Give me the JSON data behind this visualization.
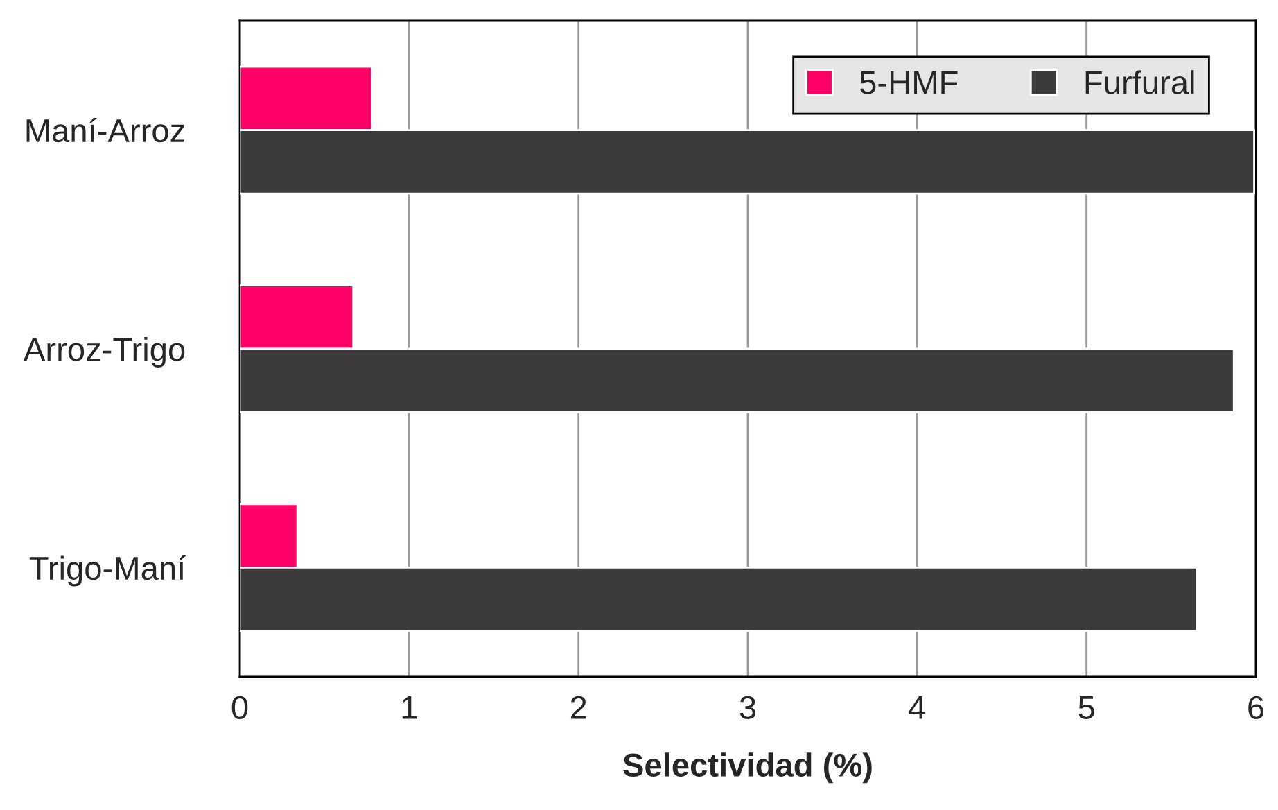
{
  "chart_data": {
    "type": "bar",
    "orientation": "horizontal",
    "xlabel": "Selectividad (%)",
    "categories": [
      "Maní-Arroz",
      "Arroz-Trigo",
      "Trigo-Maní"
    ],
    "series": [
      {
        "name": "5-HMF",
        "color": "#ff0066",
        "values": [
          0.78,
          0.67,
          0.34
        ]
      },
      {
        "name": "Furfural",
        "color": "#3c3a3a",
        "values": [
          5.99,
          5.87,
          5.65
        ]
      }
    ],
    "xlim": [
      0,
      6
    ],
    "xticks": [
      0,
      1,
      2,
      3,
      4,
      5,
      6
    ],
    "grid": "x",
    "legend": "top right"
  }
}
